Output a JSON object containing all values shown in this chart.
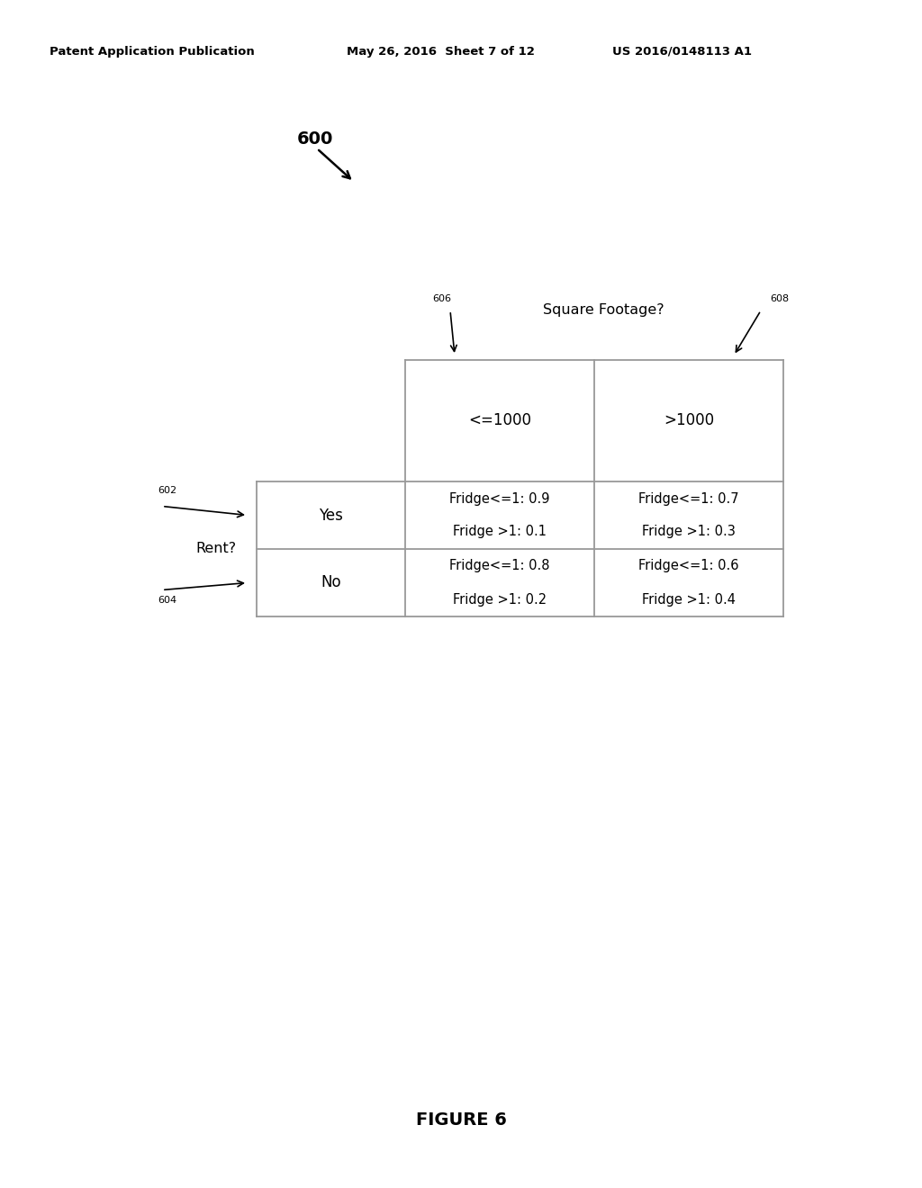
{
  "background_color": "#ffffff",
  "header_text_left": "Patent Application Publication",
  "header_text_mid": "May 26, 2016  Sheet 7 of 12",
  "header_text_right": "US 2016/0148113 A1",
  "figure_label": "FIGURE 6",
  "diagram_label": "600",
  "label_606": "606",
  "label_608": "608",
  "label_602": "602",
  "label_604": "604",
  "square_footage_label": "Square Footage?",
  "rent_label": "Rent?",
  "col1_header": "<=1000",
  "col2_header": ">1000",
  "row1_header": "Yes",
  "row2_header": "No",
  "cell_yes_le1000_line1": "Fridge<=1: 0.9",
  "cell_yes_le1000_line2": "Fridge >1: 0.1",
  "cell_yes_gt1000_line1": "Fridge<=1: 0.7",
  "cell_yes_gt1000_line2": "Fridge >1: 0.3",
  "cell_no_le1000_line1": "Fridge<=1: 0.8",
  "cell_no_le1000_line2": "Fridge >1: 0.2",
  "cell_no_gt1000_line1": "Fridge<=1: 0.6",
  "cell_no_gt1000_line2": "Fridge >1: 0.4",
  "text_color": "#000000",
  "line_color": "#999999",
  "font_family": "DejaVu Sans"
}
